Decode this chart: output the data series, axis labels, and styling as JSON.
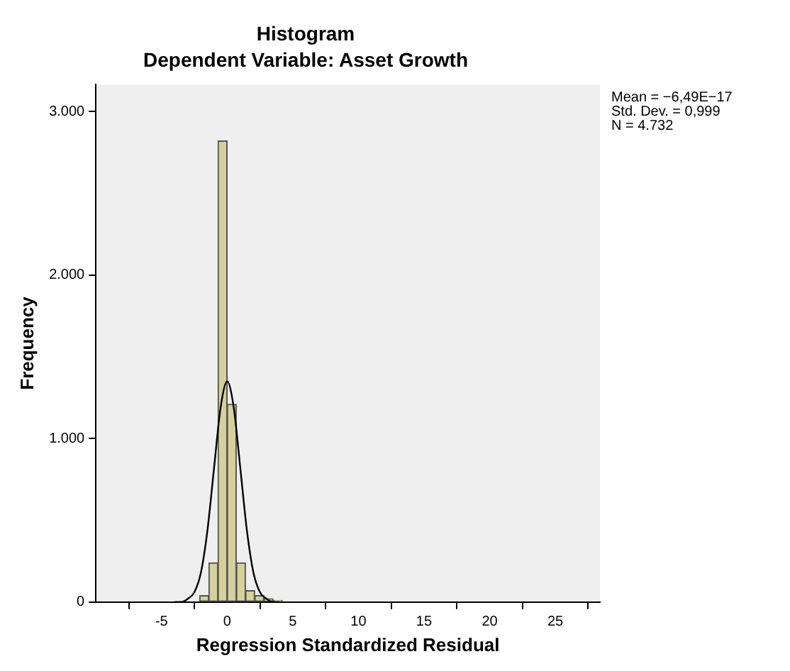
{
  "chart_data": {
    "type": "histogram",
    "title": "Histogram",
    "subtitle": "Dependent Variable: Asset Growth",
    "xlabel": "Regression Standardized Residual",
    "ylabel": "Frequency",
    "xlim": [
      -10,
      28.4
    ],
    "xticks": [
      -5,
      0,
      5,
      10,
      15,
      20,
      25
    ],
    "ylim": [
      0,
      3165
    ],
    "yticks": [
      {
        "value": 0,
        "label": "0"
      },
      {
        "value": 1000,
        "label": "1.000"
      },
      {
        "value": 2000,
        "label": "2.000"
      },
      {
        "value": 3000,
        "label": "3.000"
      }
    ],
    "grid": false,
    "legend": false,
    "annotations": [
      "Mean = −6,49E−17",
      "Std. Dev. = 0,999",
      "N = 4.732"
    ],
    "series": [
      {
        "color": "#d6d19c",
        "bins": [
          -2.1,
          -1.4,
          -0.7,
          0,
          0.7,
          1.4,
          2.1,
          2.8,
          3.5,
          4.2
        ],
        "values": [
          40,
          240,
          2820,
          1210,
          240,
          70,
          40,
          20,
          10
        ]
      },
      {
        "type": "line",
        "color": "#000000",
        "x": [
          -4,
          -3.5,
          -3,
          -2.5,
          -2,
          -1.5,
          -1,
          -0.5,
          0,
          0.5,
          1,
          1.5,
          2,
          2.5,
          3,
          3.5,
          4
        ],
        "values": [
          0,
          0,
          20,
          60,
          180,
          440,
          820,
          1190,
          1350,
          1190,
          820,
          440,
          180,
          60,
          20,
          0,
          0
        ]
      }
    ]
  }
}
